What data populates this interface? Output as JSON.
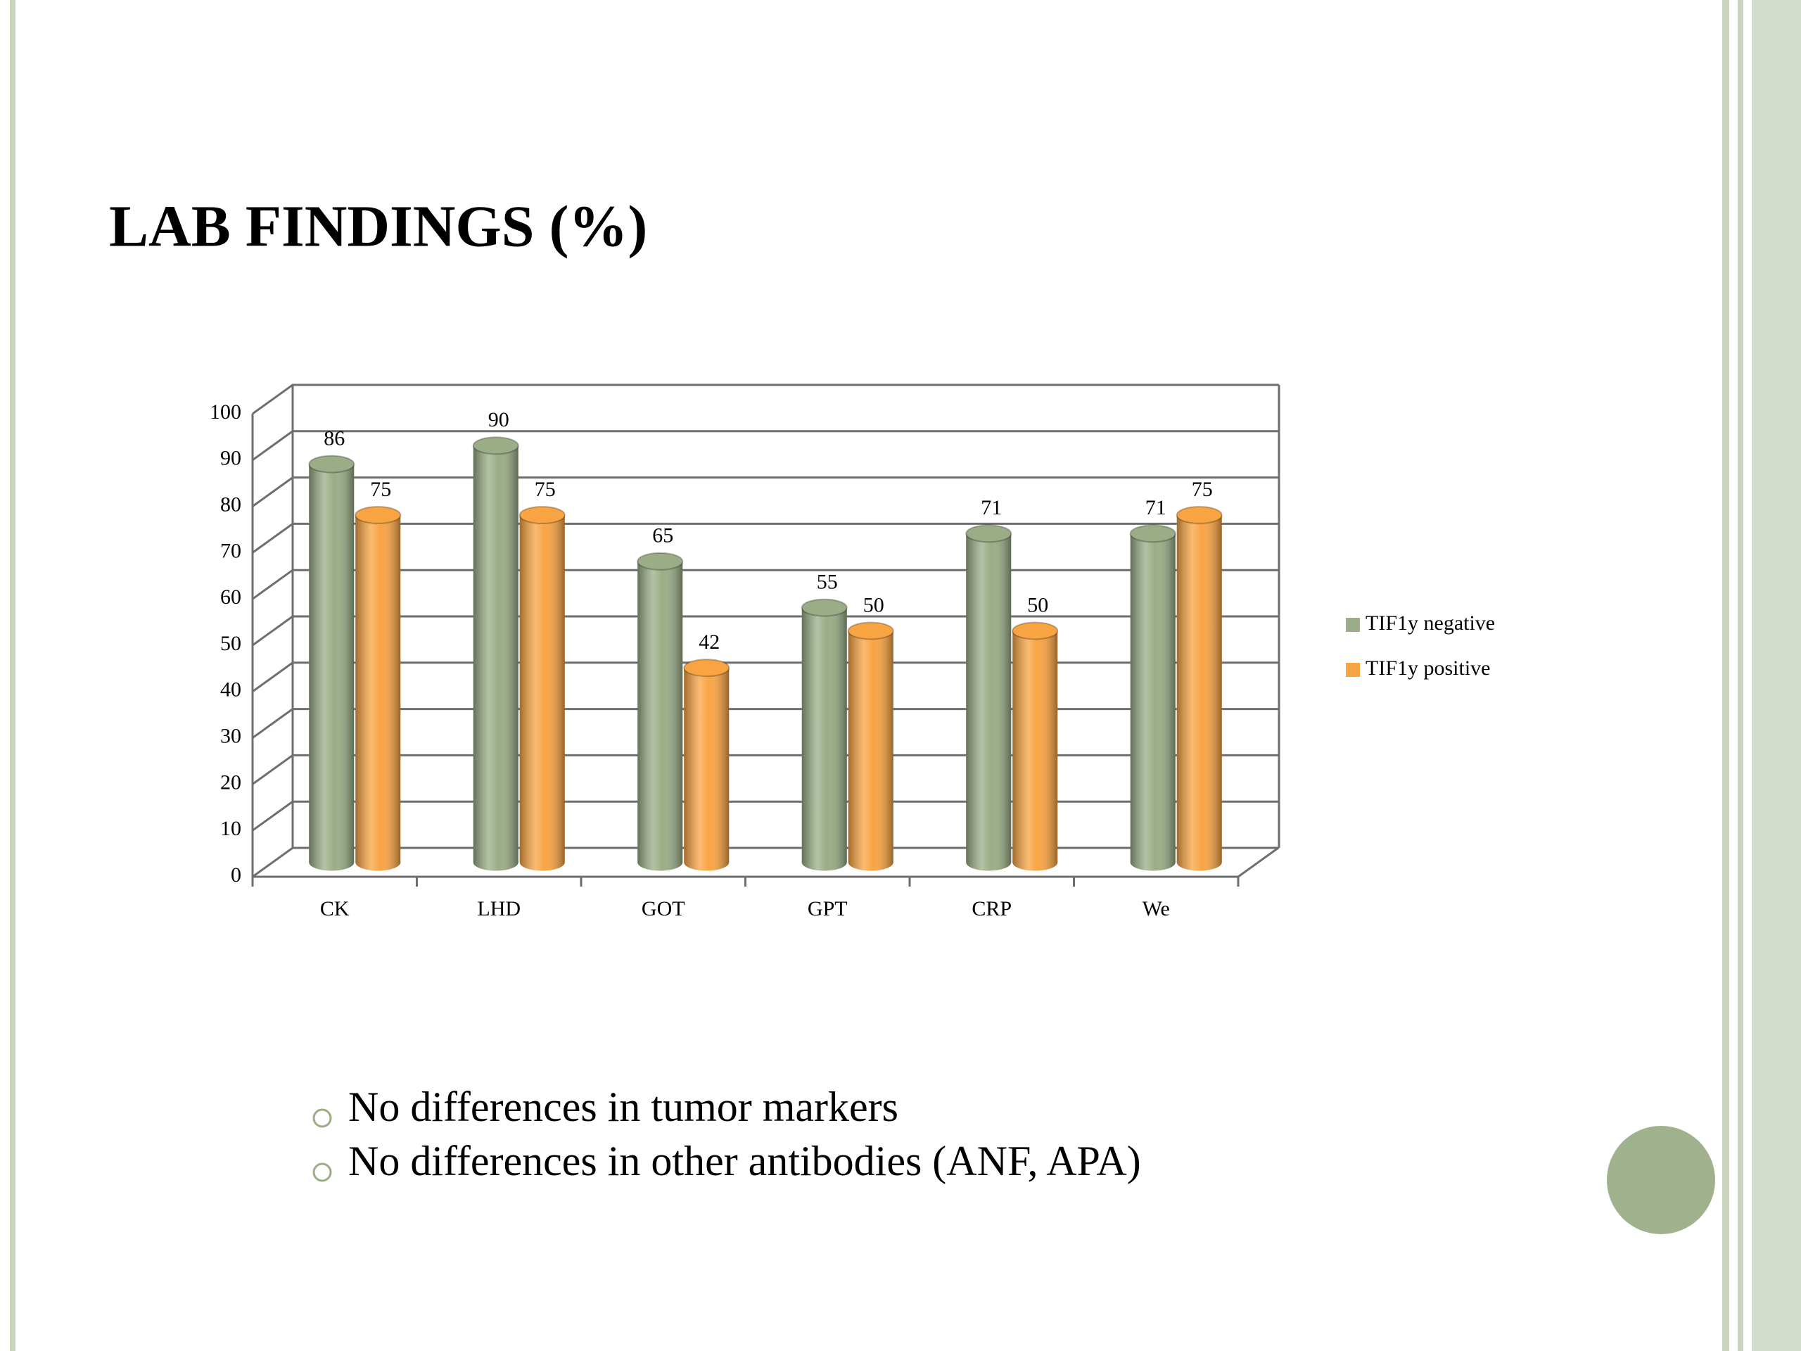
{
  "chart_data": {
    "type": "bar",
    "title": "LAB FINDINGS (%)",
    "categories": [
      "CK",
      "LHD",
      "GOT",
      "GPT",
      "CRP",
      "We"
    ],
    "series": [
      {
        "name": "TIF1y negative",
        "color": "#9aad86",
        "values": [
          86,
          90,
          65,
          55,
          71,
          71
        ]
      },
      {
        "name": "TIF1y positive",
        "color": "#f8a443",
        "values": [
          75,
          75,
          42,
          50,
          50,
          75
        ]
      }
    ],
    "ylim": [
      0,
      100
    ],
    "yticks": [
      0,
      10,
      20,
      30,
      40,
      50,
      60,
      70,
      80,
      90,
      100
    ],
    "grid": true,
    "legend": "right"
  },
  "bullets": [
    "No differences in tumor markers",
    "No differences in other antibodies (ANF, APA)"
  ]
}
